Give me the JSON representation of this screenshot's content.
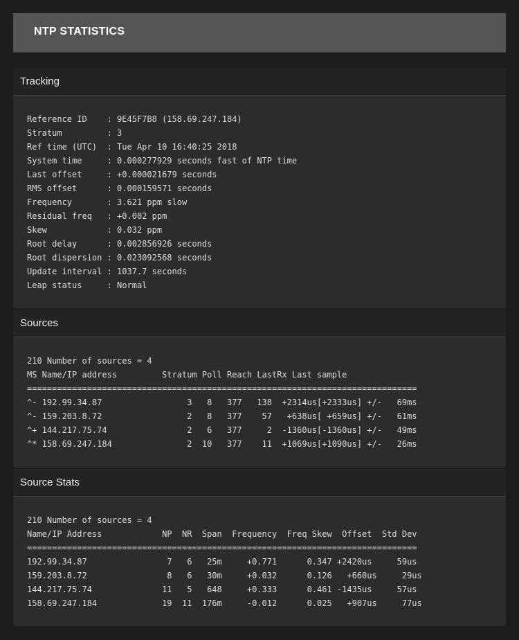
{
  "title": "NTP STATISTICS",
  "tracking": {
    "heading": "Tracking",
    "lines": [
      "Reference ID    : 9E45F7B8 (158.69.247.184)",
      "Stratum         : 3",
      "Ref time (UTC)  : Tue Apr 10 16:40:25 2018",
      "System time     : 0.000277929 seconds fast of NTP time",
      "Last offset     : +0.000021679 seconds",
      "RMS offset      : 0.000159571 seconds",
      "Frequency       : 3.621 ppm slow",
      "Residual freq   : +0.002 ppm",
      "Skew            : 0.032 ppm",
      "Root delay      : 0.002856926 seconds",
      "Root dispersion : 0.023092568 seconds",
      "Update interval : 1037.7 seconds",
      "Leap status     : Normal"
    ]
  },
  "sources": {
    "heading": "Sources",
    "lines": [
      "210 Number of sources = 4",
      "MS Name/IP address         Stratum Poll Reach LastRx Last sample",
      "==============================================================================",
      "^- 192.99.34.87                 3   8   377   138  +2314us[+2333us] +/-   69ms",
      "^- 159.203.8.72                 2   8   377    57   +638us[ +659us] +/-   61ms",
      "^+ 144.217.75.74                2   6   377     2  -1360us[-1360us] +/-   49ms",
      "^* 158.69.247.184               2  10   377    11  +1069us[+1090us] +/-   26ms"
    ]
  },
  "source_stats": {
    "heading": "Source Stats",
    "lines": [
      "210 Number of sources = 4",
      "Name/IP Address            NP  NR  Span  Frequency  Freq Skew  Offset  Std Dev",
      "==============================================================================",
      "192.99.34.87                7   6   25m     +0.771      0.347 +2420us     59us",
      "159.203.8.72                8   6   30m     +0.032      0.126   +660us     29us",
      "144.217.75.74              11   5   648     +0.333      0.461 -1435us     57us",
      "158.69.247.184             19  11  176m     -0.012      0.025   +907us     77us"
    ]
  }
}
